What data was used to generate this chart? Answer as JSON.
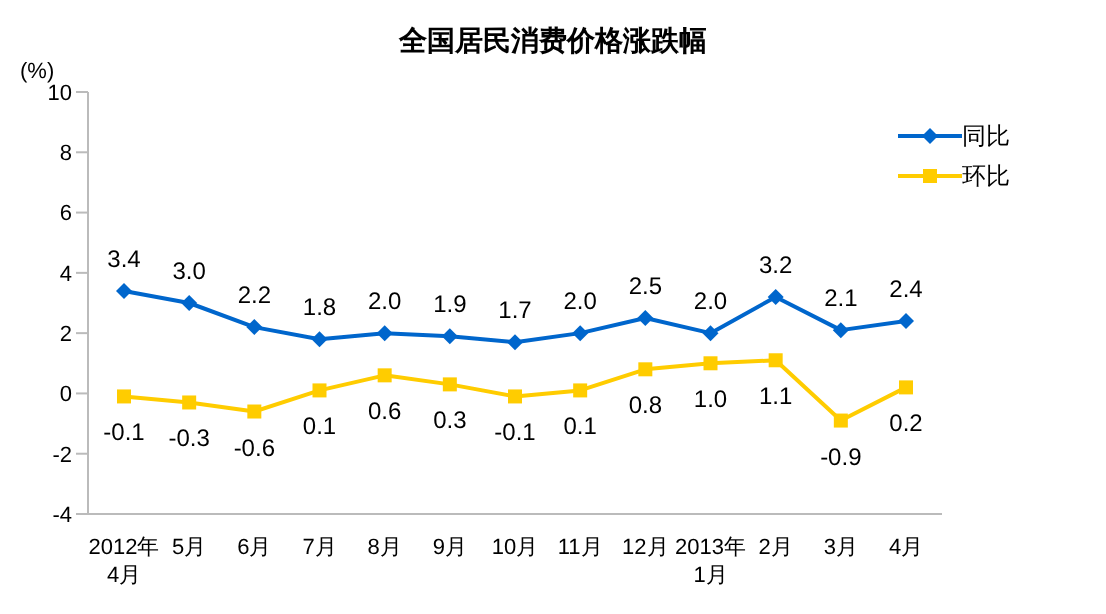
{
  "chart_data": {
    "type": "line",
    "title": "全国居民消费价格涨跌幅",
    "ylabel": "(%)",
    "categories": [
      "2012年\n4月",
      "5月",
      "6月",
      "7月",
      "8月",
      "9月",
      "10月",
      "11月",
      "12月",
      "2013年\n1月",
      "2月",
      "3月",
      "4月"
    ],
    "series": [
      {
        "name": "同比",
        "color": "#0066cc",
        "marker": "diamond",
        "values": [
          3.4,
          3.0,
          2.2,
          1.8,
          2.0,
          1.9,
          1.7,
          2.0,
          2.5,
          2.0,
          3.2,
          2.1,
          2.4
        ],
        "value_labels": [
          "3.4",
          "3.0",
          "2.2",
          "1.8",
          "2.0",
          "1.9",
          "1.7",
          "2.0",
          "2.5",
          "2.0",
          "3.2",
          "2.1",
          "2.4"
        ]
      },
      {
        "name": "环比",
        "color": "#ffcc00",
        "marker": "square",
        "values": [
          -0.1,
          -0.3,
          -0.6,
          0.1,
          0.6,
          0.3,
          -0.1,
          0.1,
          0.8,
          1.0,
          1.1,
          -0.9,
          0.2
        ],
        "value_labels": [
          "-0.1",
          "-0.3",
          "-0.6",
          "0.1",
          "0.6",
          "0.3",
          "-0.1",
          "0.1",
          "0.8",
          "1.0",
          "1.1",
          "-0.9",
          "0.2"
        ]
      }
    ],
    "ylim": [
      -4,
      10
    ],
    "yticks": [
      -4,
      -2,
      0,
      2,
      4,
      6,
      8,
      10
    ],
    "grid": false,
    "legend": "top right",
    "line_style": "solid"
  }
}
